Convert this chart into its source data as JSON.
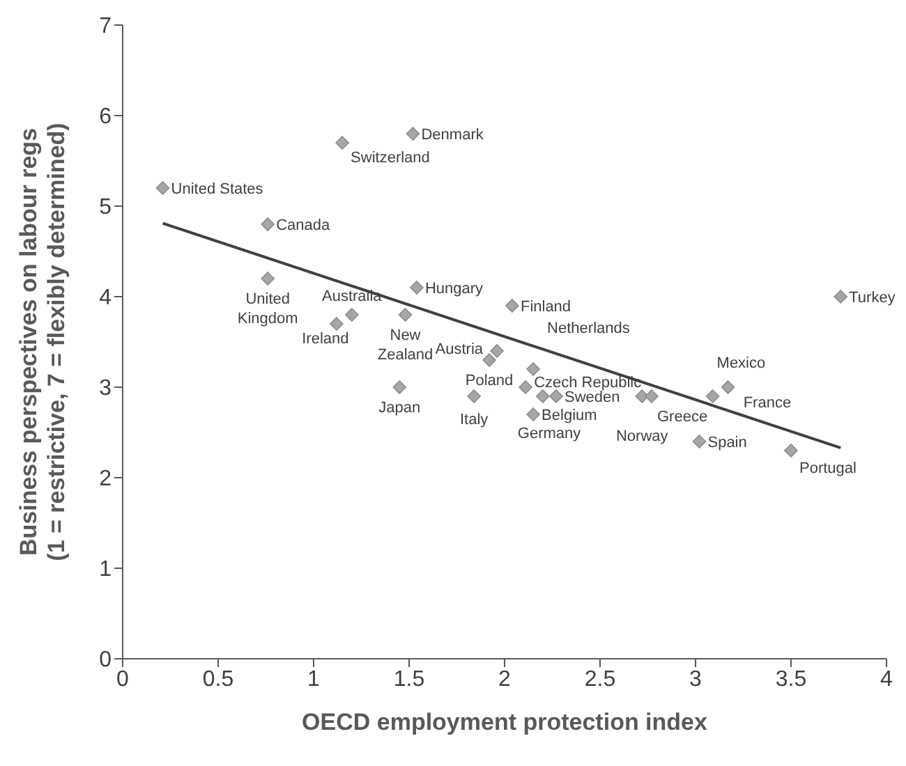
{
  "chart_data": {
    "type": "scatter",
    "xlabel": "OECD employment protection index",
    "ylabel": "Business perspectives on labour regs\n(1 = restrictive, 7 = flexibly determined)",
    "xlim": [
      0,
      4
    ],
    "xticks": [
      0,
      0.5,
      1,
      1.5,
      2,
      2.5,
      3,
      3.5,
      4
    ],
    "ylim": [
      0,
      7
    ],
    "yticks": [
      0,
      1,
      2,
      3,
      4,
      5,
      6,
      7
    ],
    "series": [
      {
        "marker": "diamond",
        "color": "#a6a6a6",
        "x": [
          0.21,
          0.76,
          0.76,
          1.2,
          1.12,
          1.48,
          1.54,
          1.15,
          1.52,
          2.04,
          1.96,
          1.92,
          2.15,
          2.11,
          1.45,
          1.84,
          2.27,
          2.2,
          2.15,
          2.72,
          2.77,
          3.09,
          3.17,
          3.02,
          3.5,
          3.76
        ],
        "values": [
          5.2,
          4.8,
          4.2,
          3.8,
          3.7,
          3.8,
          4.1,
          5.7,
          5.8,
          3.9,
          3.4,
          3.3,
          3.2,
          3.0,
          3.0,
          2.9,
          2.9,
          2.9,
          2.7,
          2.9,
          2.9,
          2.9,
          3.0,
          2.4,
          2.3,
          4.0
        ],
        "value_labels": [
          "United States",
          "Canada",
          "United Kingdom",
          "Australia",
          "Ireland",
          "New Zealand",
          "Hungary",
          "Switzerland",
          "Denmark",
          "Finland",
          "Austria",
          "Poland",
          "Netherlands",
          "Czech Republic",
          "Japan",
          "Italy",
          "Sweden",
          "Germany",
          "Belgium",
          "Norway",
          "Greece",
          "France",
          "Mexico",
          "Spain",
          "Portugal",
          "Turkey"
        ]
      },
      {
        "type": "line",
        "marker": "none",
        "color": "#404040",
        "x": [
          0.21,
          3.76
        ],
        "values": [
          4.81,
          2.33
        ]
      }
    ]
  }
}
